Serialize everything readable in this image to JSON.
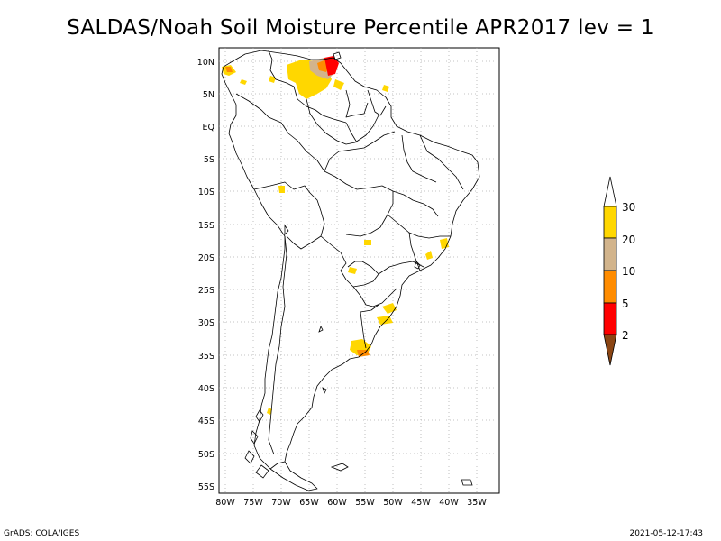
{
  "title": "SALDAS/Noah Soil Moisture Percentile APR2017 lev = 1",
  "map": {
    "lat_labels": [
      "10N",
      "5N",
      "EQ",
      "5S",
      "10S",
      "15S",
      "20S",
      "25S",
      "30S",
      "35S",
      "40S",
      "45S",
      "50S",
      "55S"
    ],
    "lon_labels": [
      "80W",
      "75W",
      "70W",
      "65W",
      "60W",
      "55W",
      "50W",
      "45W",
      "40W",
      "35W"
    ]
  },
  "legend": {
    "labels": [
      "30",
      "20",
      "10",
      "5",
      "2"
    ],
    "colors": {
      "above_30": "#ffffff",
      "20_30": "#ffd700",
      "10_20": "#d2b48c",
      "5_10": "#ff8c00",
      "2_5": "#ff0000",
      "below_2": "#8b4513"
    }
  },
  "footer": {
    "left": "GrADS: COLA/IGES",
    "right": "2021-05-12-17:43"
  }
}
